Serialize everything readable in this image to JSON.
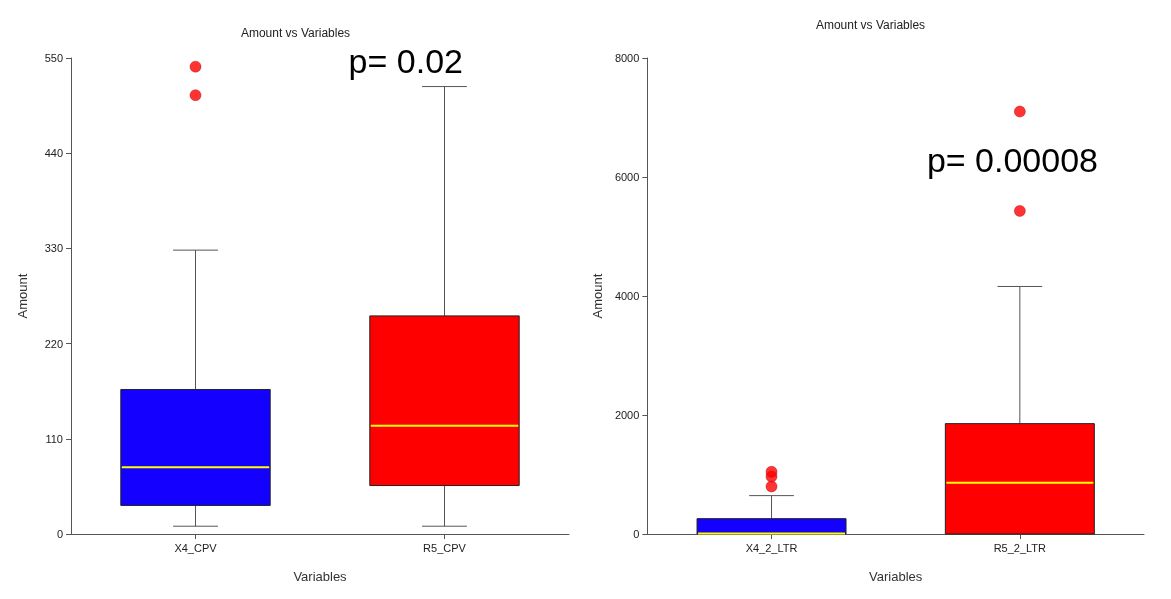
{
  "chart_data": [
    {
      "type": "box",
      "title": "Amount vs Variables",
      "xlabel": "Variables",
      "ylabel": "Amount",
      "categories": [
        "X4_CPV",
        "R5_CPV"
      ],
      "colors": [
        "#1400ff",
        "#ff0000"
      ],
      "ylim": [
        0,
        550
      ],
      "yticks": [
        0,
        110,
        220,
        330,
        440,
        550
      ],
      "grid": false,
      "legend": false,
      "annotations": [
        "p= 0.02"
      ],
      "boxes": [
        {
          "low": 9,
          "q1": 33,
          "median": 77,
          "q3": 167,
          "high": 328,
          "outliers": [
            507,
            540
          ]
        },
        {
          "low": 9,
          "q1": 56,
          "median": 125,
          "q3": 252,
          "high": 517
        }
      ]
    },
    {
      "type": "box",
      "title": "Amount vs Variables",
      "xlabel": "Variables",
      "ylabel": "Amount",
      "categories": [
        "X4_2_LTR",
        "R5_2_LTR"
      ],
      "colors": [
        "#1400ff",
        "#ff0000"
      ],
      "ylim": [
        0,
        8000
      ],
      "yticks": [
        0,
        2000,
        4000,
        6000,
        8000
      ],
      "grid": false,
      "legend": false,
      "annotations": [
        "p= 0.00008"
      ],
      "boxes": [
        {
          "low": 0,
          "q1": 0,
          "median": 10,
          "q3": 258,
          "high": 645,
          "outliers": [
            800,
            965,
            1045
          ]
        },
        {
          "low": 0,
          "q1": 0,
          "median": 860,
          "q3": 1855,
          "high": 4160,
          "outliers": [
            5430,
            7100
          ]
        }
      ]
    }
  ]
}
